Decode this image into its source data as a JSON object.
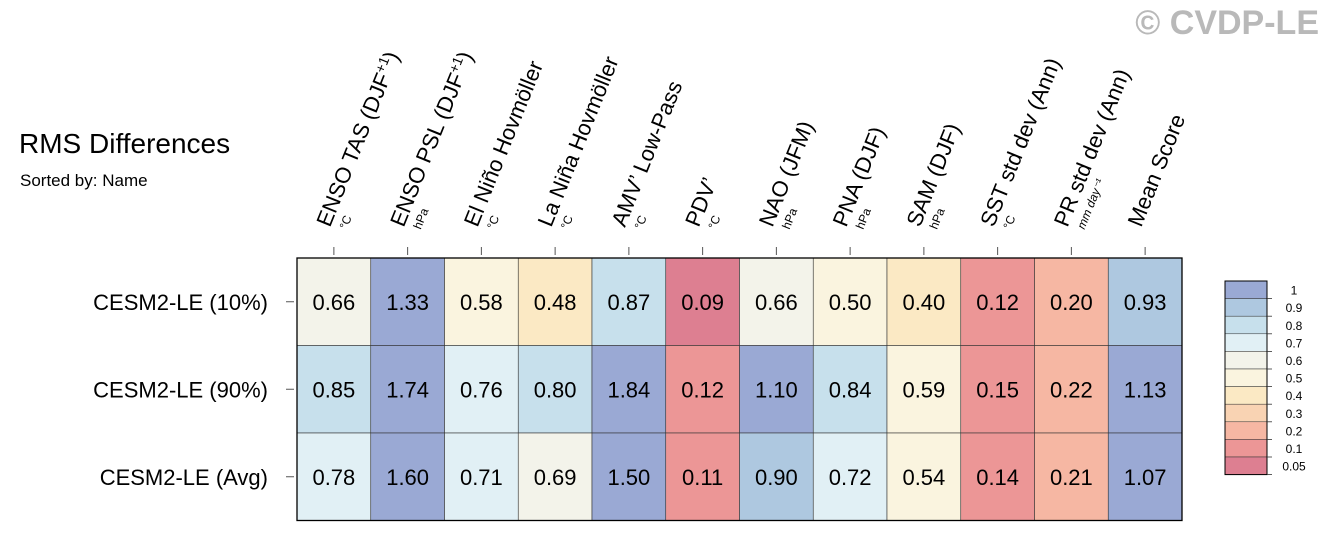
{
  "watermark": "© CVDP-LE",
  "chart_data": {
    "type": "heatmap",
    "title": "RMS Differences",
    "subtitle": "Sorted by: Name",
    "columns": [
      {
        "label": "ENSO TAS (DJF",
        "sup": "+1",
        "close": ")",
        "unit": "°C"
      },
      {
        "label": "ENSO PSL (DJF",
        "sup": "+1",
        "close": ")",
        "unit": "hPa"
      },
      {
        "label": "El Niño Hovmöller",
        "sup": "",
        "close": "",
        "unit": "°C"
      },
      {
        "label": "La Niña Hovmöller",
        "sup": "",
        "close": "",
        "unit": "°C"
      },
      {
        "label": "AMV’ Low-Pass",
        "sup": "",
        "close": "",
        "unit": "°C"
      },
      {
        "label": "PDV’",
        "sup": "",
        "close": "",
        "unit": "°C"
      },
      {
        "label": "NAO (JFM)",
        "sup": "",
        "close": "",
        "unit": "hPa"
      },
      {
        "label": "PNA (DJF)",
        "sup": "",
        "close": "",
        "unit": "hPa"
      },
      {
        "label": "SAM (DJF)",
        "sup": "",
        "close": "",
        "unit": "hPa"
      },
      {
        "label": "SST std dev (Ann)",
        "sup": "",
        "close": "",
        "unit": "°C"
      },
      {
        "label": "PR std dev (Ann)",
        "sup": "",
        "close": "",
        "unit": "mm day⁻¹"
      },
      {
        "label": "Mean Score",
        "sup": "",
        "close": "",
        "unit": ""
      }
    ],
    "rows": [
      "CESM2-LE (10%)",
      "CESM2-LE (90%)",
      "CESM2-LE (Avg)"
    ],
    "values": [
      [
        0.66,
        1.33,
        0.58,
        0.48,
        0.87,
        0.09,
        0.66,
        0.5,
        0.4,
        0.12,
        0.2,
        0.93
      ],
      [
        0.85,
        1.74,
        0.76,
        0.8,
        1.84,
        0.12,
        1.1,
        0.84,
        0.59,
        0.15,
        0.22,
        1.13
      ],
      [
        0.78,
        1.6,
        0.71,
        0.69,
        1.5,
        0.11,
        0.9,
        0.72,
        0.54,
        0.14,
        0.21,
        1.07
      ]
    ],
    "legend": {
      "placement": "right",
      "levels": [
        "1",
        "0.9",
        "0.8",
        "0.7",
        "0.6",
        "0.5",
        "0.4",
        "0.3",
        "0.2",
        "0.1",
        "0.05"
      ],
      "colors": [
        "#9aa9d4",
        "#aec8e0",
        "#c7e0ec",
        "#e1f0f5",
        "#f3f3ea",
        "#faf4df",
        "#fbe9c4",
        "#f9d3b3",
        "#f6b7a3",
        "#ec9696",
        "#dd7f91"
      ]
    }
  }
}
